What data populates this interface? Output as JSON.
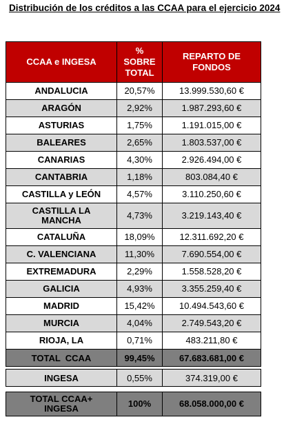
{
  "title": "Distribución de los créditos a las CCAA para el ejercicio 2024",
  "headers": {
    "col1": "CCAA e INGESA",
    "col2_line1": "%",
    "col2_line2": "SOBRE",
    "col2_line3": "TOTAL",
    "col3_line1": "REPARTO DE",
    "col3_line2": "FONDOS"
  },
  "rows": [
    {
      "name": "ANDALUCIA",
      "pct": "20,57%",
      "amount": "13.999.530,60 €"
    },
    {
      "name": "ARAGÓN",
      "pct": "2,92%",
      "amount": "1.987.293,60 €"
    },
    {
      "name": "ASTURIAS",
      "pct": "1,75%",
      "amount": "1.191.015,00 €"
    },
    {
      "name": "BALEARES",
      "pct": "2,65%",
      "amount": "1.803.537,00 €"
    },
    {
      "name": "CANARIAS",
      "pct": "4,30%",
      "amount": "2.926.494,00 €"
    },
    {
      "name": "CANTABRIA",
      "pct": "1,18%",
      "amount": "803.084,40 €"
    },
    {
      "name": "CASTILLA y LEÓN",
      "pct": "4,57%",
      "amount": "3.110.250,60 €"
    },
    {
      "name_line1": "CASTILLA LA",
      "name_line2": "MANCHA",
      "pct": "4,73%",
      "amount": "3.219.143,40 €"
    },
    {
      "name": "CATALUÑA",
      "pct": "18,09%",
      "amount": "12.311.692,20 €"
    },
    {
      "name": "C. VALENCIANA",
      "pct": "11,30%",
      "amount": "7.690.554,00 €"
    },
    {
      "name": "EXTREMADURA",
      "pct": "2,29%",
      "amount": "1.558.528,20 €"
    },
    {
      "name": "GALICIA",
      "pct": "4,93%",
      "amount": "3.355.259,40 €"
    },
    {
      "name": "MADRID",
      "pct": "15,42%",
      "amount": "10.494.543,60 €"
    },
    {
      "name": "MURCIA",
      "pct": "4,04%",
      "amount": "2.749.543,20 €"
    },
    {
      "name": "RIOJA, LA",
      "pct": "0,71%",
      "amount": "483.211,80 €"
    }
  ],
  "total_ccaa": {
    "name": "TOTAL  CCAA",
    "pct": "99,45%",
    "amount": "67.683.681,00 €"
  },
  "ingesa": {
    "name": "INGESA",
    "pct": "0,55%",
    "amount": "374.319,00 €"
  },
  "grand_total": {
    "name_line1": "TOTAL CCAA+",
    "name_line2": "INGESA",
    "pct": "100%",
    "amount": "68.058.000,00 €"
  },
  "colors": {
    "header": "#c00000",
    "stripe": "#d9d9d9",
    "total": "#7f7f7f"
  }
}
